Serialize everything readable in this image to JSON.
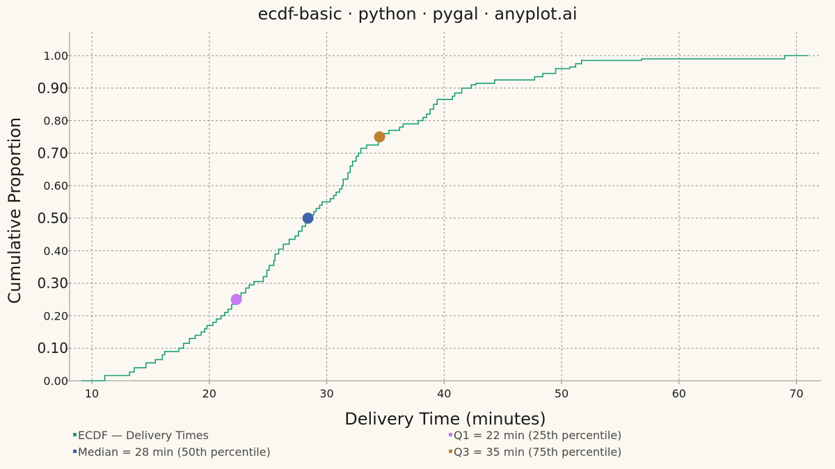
{
  "chart_data": {
    "type": "line",
    "title": "ecdf-basic · python · pygal · anyplot.ai",
    "xlabel": "Delivery Time (minutes)",
    "ylabel": "Cumulative Proportion",
    "xlim": [
      8.1,
      72.1
    ],
    "ylim": [
      0,
      1
    ],
    "x_ticks": [
      10,
      20,
      30,
      40,
      50,
      60,
      70
    ],
    "y_ticks": [
      0.0,
      0.1,
      0.2,
      0.3,
      0.4,
      0.5,
      0.6,
      0.7,
      0.8,
      0.9,
      1.0
    ],
    "y_tick_labels": [
      "0.00",
      "0.10",
      "0.20",
      "0.30",
      "0.40",
      "0.50",
      "0.60",
      "0.70",
      "0.80",
      "0.90",
      "1.00"
    ],
    "y_major_ticks": [
      0.1,
      0.3,
      0.5,
      0.7,
      0.9
    ],
    "grid": true,
    "legend_position": "bottom",
    "series": [
      {
        "name": "ECDF — Delivery Times",
        "color": "#1A9E76",
        "kind": "step",
        "points": [
          [
            9.1,
            0.0
          ],
          [
            11.1,
            0.0
          ],
          [
            11.1,
            0.016
          ],
          [
            13.2,
            0.016
          ],
          [
            13.2,
            0.027
          ],
          [
            13.6,
            0.027
          ],
          [
            13.6,
            0.04
          ],
          [
            14.6,
            0.04
          ],
          [
            14.6,
            0.055
          ],
          [
            15.4,
            0.055
          ],
          [
            15.4,
            0.065
          ],
          [
            16.0,
            0.065
          ],
          [
            16.0,
            0.08
          ],
          [
            16.2,
            0.08
          ],
          [
            16.2,
            0.09
          ],
          [
            17.4,
            0.09
          ],
          [
            17.4,
            0.1
          ],
          [
            17.8,
            0.1
          ],
          [
            17.8,
            0.115
          ],
          [
            18.3,
            0.115
          ],
          [
            18.3,
            0.13
          ],
          [
            18.8,
            0.13
          ],
          [
            18.8,
            0.14
          ],
          [
            19.3,
            0.14
          ],
          [
            19.3,
            0.15
          ],
          [
            19.6,
            0.15
          ],
          [
            19.6,
            0.16
          ],
          [
            19.8,
            0.16
          ],
          [
            19.8,
            0.17
          ],
          [
            20.3,
            0.17
          ],
          [
            20.3,
            0.18
          ],
          [
            20.6,
            0.18
          ],
          [
            20.6,
            0.19
          ],
          [
            21.0,
            0.19
          ],
          [
            21.0,
            0.2
          ],
          [
            21.3,
            0.2
          ],
          [
            21.3,
            0.21
          ],
          [
            21.6,
            0.21
          ],
          [
            21.6,
            0.22
          ],
          [
            21.9,
            0.22
          ],
          [
            21.9,
            0.235
          ],
          [
            22.2,
            0.235
          ],
          [
            22.2,
            0.25
          ],
          [
            22.7,
            0.25
          ],
          [
            22.7,
            0.27
          ],
          [
            23.1,
            0.27
          ],
          [
            23.1,
            0.285
          ],
          [
            23.4,
            0.285
          ],
          [
            23.4,
            0.295
          ],
          [
            23.8,
            0.295
          ],
          [
            23.8,
            0.305
          ],
          [
            24.6,
            0.305
          ],
          [
            24.6,
            0.32
          ],
          [
            24.9,
            0.32
          ],
          [
            24.9,
            0.34
          ],
          [
            25.1,
            0.34
          ],
          [
            25.1,
            0.355
          ],
          [
            25.5,
            0.355
          ],
          [
            25.5,
            0.37
          ],
          [
            25.6,
            0.37
          ],
          [
            25.6,
            0.39
          ],
          [
            25.9,
            0.39
          ],
          [
            25.9,
            0.405
          ],
          [
            26.3,
            0.405
          ],
          [
            26.3,
            0.42
          ],
          [
            26.8,
            0.42
          ],
          [
            26.8,
            0.435
          ],
          [
            27.3,
            0.435
          ],
          [
            27.3,
            0.445
          ],
          [
            27.6,
            0.445
          ],
          [
            27.6,
            0.46
          ],
          [
            27.9,
            0.46
          ],
          [
            27.9,
            0.475
          ],
          [
            28.2,
            0.475
          ],
          [
            28.2,
            0.49
          ],
          [
            28.4,
            0.49
          ],
          [
            28.4,
            0.5
          ],
          [
            28.6,
            0.5
          ],
          [
            28.6,
            0.51
          ],
          [
            28.9,
            0.51
          ],
          [
            28.9,
            0.52
          ],
          [
            29.1,
            0.52
          ],
          [
            29.1,
            0.53
          ],
          [
            29.4,
            0.53
          ],
          [
            29.4,
            0.54
          ],
          [
            29.6,
            0.54
          ],
          [
            29.6,
            0.55
          ],
          [
            30.3,
            0.55
          ],
          [
            30.3,
            0.56
          ],
          [
            30.6,
            0.56
          ],
          [
            30.6,
            0.57
          ],
          [
            30.8,
            0.57
          ],
          [
            30.8,
            0.58
          ],
          [
            31.1,
            0.58
          ],
          [
            31.1,
            0.59
          ],
          [
            31.3,
            0.59
          ],
          [
            31.3,
            0.6
          ],
          [
            31.4,
            0.6
          ],
          [
            31.4,
            0.62
          ],
          [
            31.8,
            0.62
          ],
          [
            31.8,
            0.64
          ],
          [
            32.0,
            0.64
          ],
          [
            32.0,
            0.66
          ],
          [
            32.2,
            0.66
          ],
          [
            32.2,
            0.675
          ],
          [
            32.5,
            0.675
          ],
          [
            32.5,
            0.69
          ],
          [
            32.7,
            0.69
          ],
          [
            32.7,
            0.7
          ],
          [
            32.9,
            0.7
          ],
          [
            32.9,
            0.715
          ],
          [
            33.4,
            0.715
          ],
          [
            33.4,
            0.725
          ],
          [
            34.4,
            0.725
          ],
          [
            34.4,
            0.74
          ],
          [
            34.5,
            0.74
          ],
          [
            34.5,
            0.75
          ],
          [
            34.9,
            0.75
          ],
          [
            34.9,
            0.76
          ],
          [
            35.3,
            0.76
          ],
          [
            35.3,
            0.77
          ],
          [
            36.2,
            0.77
          ],
          [
            36.2,
            0.78
          ],
          [
            36.5,
            0.78
          ],
          [
            36.5,
            0.79
          ],
          [
            37.8,
            0.79
          ],
          [
            37.8,
            0.8
          ],
          [
            38.2,
            0.8
          ],
          [
            38.2,
            0.81
          ],
          [
            38.5,
            0.81
          ],
          [
            38.5,
            0.82
          ],
          [
            38.8,
            0.82
          ],
          [
            38.8,
            0.835
          ],
          [
            39.1,
            0.835
          ],
          [
            39.1,
            0.85
          ],
          [
            39.4,
            0.85
          ],
          [
            39.4,
            0.865
          ],
          [
            40.7,
            0.865
          ],
          [
            40.7,
            0.875
          ],
          [
            40.9,
            0.875
          ],
          [
            40.9,
            0.885
          ],
          [
            41.5,
            0.885
          ],
          [
            41.5,
            0.9
          ],
          [
            42.3,
            0.9
          ],
          [
            42.3,
            0.91
          ],
          [
            42.7,
            0.91
          ],
          [
            42.7,
            0.915
          ],
          [
            44.3,
            0.915
          ],
          [
            44.3,
            0.925
          ],
          [
            47.7,
            0.925
          ],
          [
            47.7,
            0.935
          ],
          [
            48.4,
            0.935
          ],
          [
            48.4,
            0.945
          ],
          [
            49.5,
            0.945
          ],
          [
            49.5,
            0.96
          ],
          [
            50.7,
            0.96
          ],
          [
            50.7,
            0.965
          ],
          [
            51.2,
            0.965
          ],
          [
            51.2,
            0.975
          ],
          [
            51.7,
            0.975
          ],
          [
            51.7,
            0.985
          ],
          [
            56.8,
            0.985
          ],
          [
            56.8,
            0.99
          ],
          [
            69.0,
            0.99
          ],
          [
            69.0,
            1.0
          ],
          [
            71.0,
            1.0
          ]
        ]
      },
      {
        "name": "Q1 = 22 min (25th percentile)",
        "color": "#C678F5",
        "kind": "point",
        "points": [
          [
            22.3,
            0.25
          ]
        ]
      },
      {
        "name": "Median = 28 min (50th percentile)",
        "color": "#3F63A6",
        "kind": "point",
        "points": [
          [
            28.4,
            0.5
          ]
        ]
      },
      {
        "name": "Q3 = 35 min (75th percentile)",
        "color": "#C07F33",
        "kind": "point",
        "points": [
          [
            34.5,
            0.75
          ]
        ]
      }
    ]
  }
}
